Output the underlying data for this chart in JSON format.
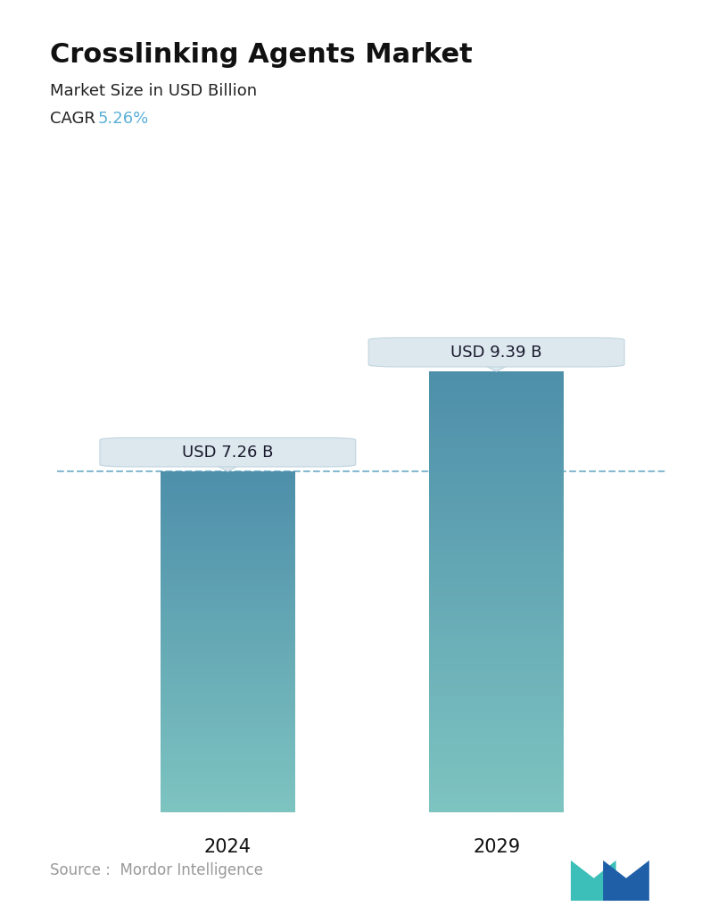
{
  "title": "Crosslinking Agents Market",
  "subtitle": "Market Size in USD Billion",
  "cagr_label": "CAGR ",
  "cagr_value": "5.26%",
  "cagr_color": "#5bafd6",
  "categories": [
    "2024",
    "2029"
  ],
  "values": [
    7.26,
    9.39
  ],
  "bar_labels": [
    "USD 7.26 B",
    "USD 9.39 B"
  ],
  "bar_top_color": "#4e8faa",
  "bar_bottom_color": "#7ec4c1",
  "dashed_line_color": "#7ab3cc",
  "dashed_line_y": 7.26,
  "background_color": "#ffffff",
  "title_fontsize": 22,
  "subtitle_fontsize": 13,
  "cagr_fontsize": 13,
  "xlabel_fontsize": 15,
  "label_fontsize": 13,
  "source_text": "Source :  Mordor Intelligence",
  "source_color": "#999999",
  "source_fontsize": 12,
  "ylim": [
    0,
    11.8
  ],
  "bar_width": 0.22,
  "x_positions": [
    0.28,
    0.72
  ]
}
